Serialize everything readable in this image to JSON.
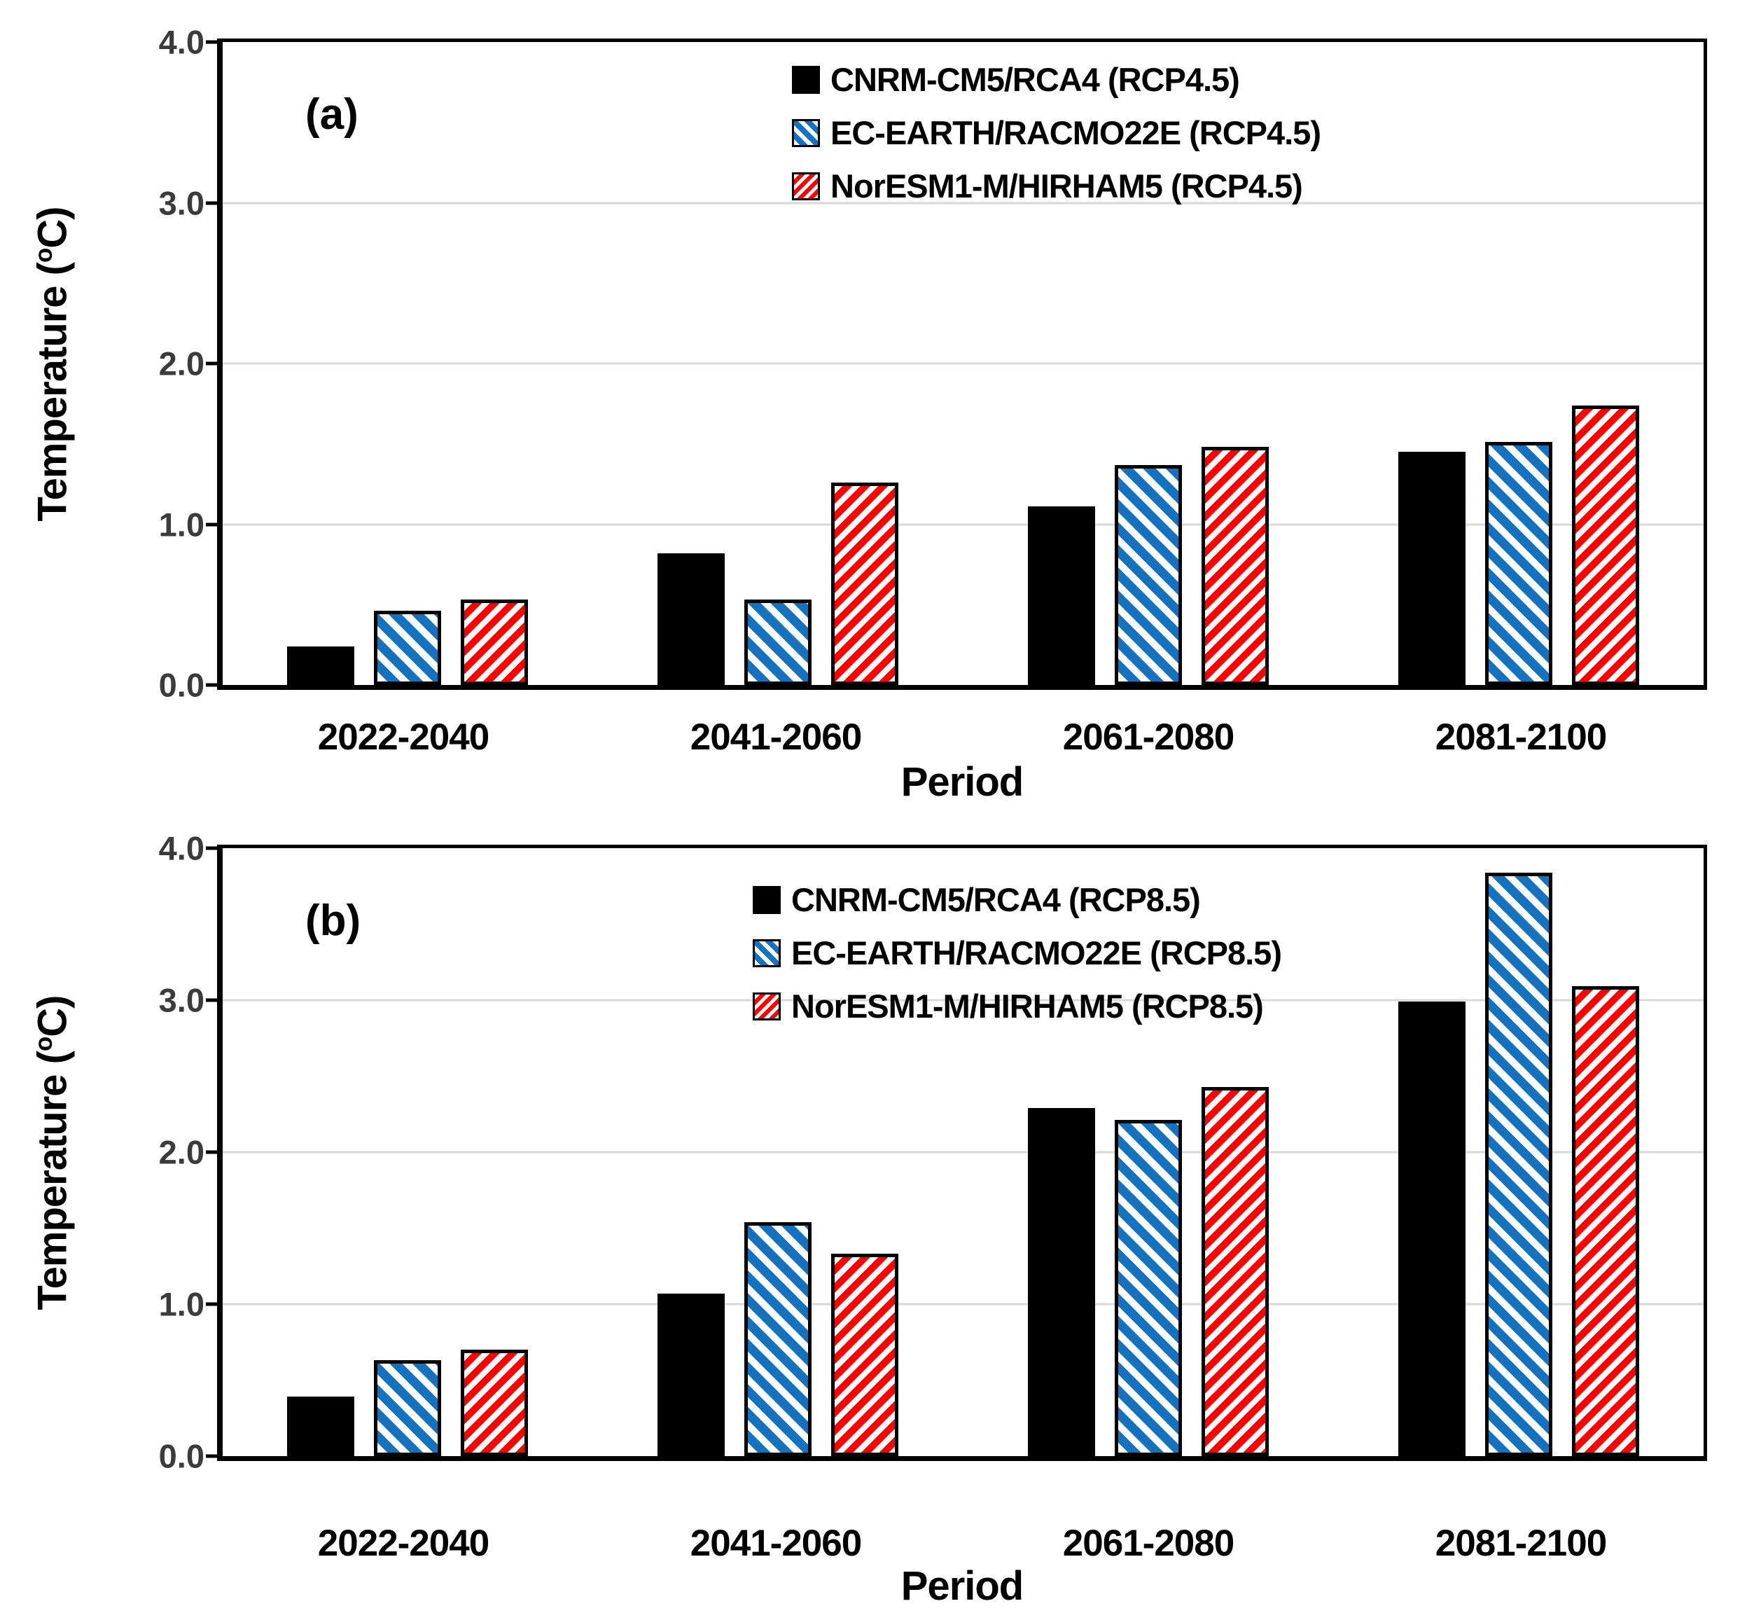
{
  "chart_data": [
    {
      "type": "bar",
      "panel_label": "(a)",
      "xlabel": "Period",
      "ylabel": "Temperature (°C)",
      "ylabel_parts": {
        "pre": "Temperature (",
        "sup": "o",
        "post": "C)"
      },
      "ylim": [
        0,
        4
      ],
      "ytick_labels": [
        "4.0",
        "3.0",
        "2.0",
        "1.0",
        "0.0"
      ],
      "grid": "horizontal-light-gray",
      "legend_position": "inside-top-center",
      "categories": [
        "2022-2040",
        "2041-2060",
        "2061-2080",
        "2081-2100"
      ],
      "series": [
        {
          "name": "CNRM-CM5/RCA4 (RCP4.5)",
          "pattern": "solid",
          "color": "#000000",
          "values": [
            0.24,
            0.82,
            1.11,
            1.45
          ]
        },
        {
          "name": "EC-EARTH/RACMO22E (RCP4.5)",
          "pattern": "hatch-backslash",
          "color": "#1472BE",
          "values": [
            0.46,
            0.53,
            1.37,
            1.51
          ]
        },
        {
          "name": "NorESM1-M/HIRHAM5 (RCP4.5)",
          "pattern": "hatch-slash",
          "color": "#FF0000",
          "values": [
            0.53,
            1.26,
            1.48,
            1.74
          ]
        }
      ]
    },
    {
      "type": "bar",
      "panel_label": "(b)",
      "xlabel": "Period",
      "ylabel": "Temperature (°C)",
      "ylabel_parts": {
        "pre": "Temperature (",
        "sup": "o",
        "post": "C)"
      },
      "ylim": [
        0,
        4
      ],
      "ytick_labels": [
        "4.0",
        "3.0",
        "2.0",
        "1.0",
        "0.0"
      ],
      "grid": "horizontal-light-gray",
      "legend_position": "inside-top-center",
      "categories": [
        "2022-2040",
        "2041-2060",
        "2061-2080",
        "2081-2100"
      ],
      "series": [
        {
          "name": "CNRM-CM5/RCA4 (RCP8.5)",
          "pattern": "solid",
          "color": "#000000",
          "values": [
            0.39,
            1.07,
            2.29,
            2.99
          ]
        },
        {
          "name": "EC-EARTH/RACMO22E (RCP8.5)",
          "pattern": "hatch-backslash",
          "color": "#1472BE",
          "values": [
            0.63,
            1.54,
            2.21,
            3.84
          ]
        },
        {
          "name": "NorESM1-M/HIRHAM5 (RCP8.5)",
          "pattern": "hatch-slash",
          "color": "#FF0000",
          "values": [
            0.7,
            1.33,
            2.43,
            3.09
          ]
        }
      ]
    }
  ],
  "colors": {
    "bar_black": "#000000",
    "bar_blue": "#1472BE",
    "bar_red": "#FF0000",
    "gridline": "#D9D9D9",
    "axis": "#000000",
    "ytick_text": "#3B3B3B"
  }
}
